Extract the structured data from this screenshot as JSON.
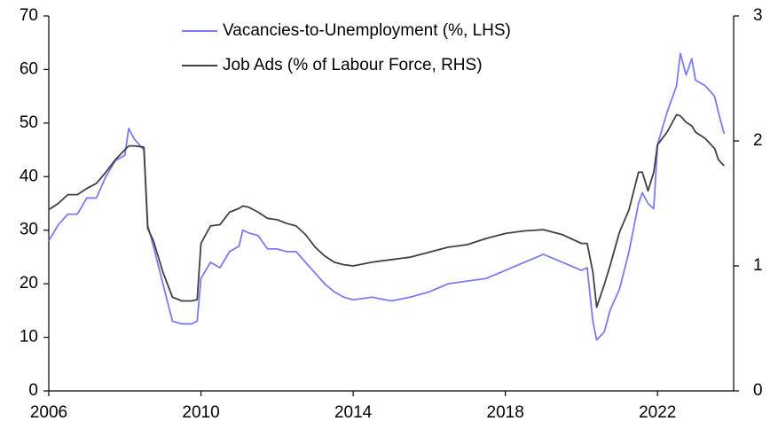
{
  "chart_data": {
    "type": "line",
    "x": [
      2006,
      2006.25,
      2006.5,
      2006.75,
      2007,
      2007.25,
      2007.5,
      2007.75,
      2008,
      2008.1,
      2008.25,
      2008.5,
      2008.6,
      2008.75,
      2009,
      2009.25,
      2009.5,
      2009.75,
      2009.9,
      2010,
      2010.25,
      2010.5,
      2010.75,
      2011,
      2011.1,
      2011.25,
      2011.5,
      2011.75,
      2012,
      2012.25,
      2012.5,
      2012.75,
      2013,
      2013.25,
      2013.5,
      2013.75,
      2014,
      2014.5,
      2015,
      2015.5,
      2016,
      2016.5,
      2017,
      2017.5,
      2018,
      2018.5,
      2019,
      2019.5,
      2020,
      2020.15,
      2020.3,
      2020.4,
      2020.6,
      2020.75,
      2021,
      2021.25,
      2021.5,
      2021.6,
      2021.75,
      2021.9,
      2022,
      2022.25,
      2022.5,
      2022.6,
      2022.75,
      2022.9,
      2023,
      2023.25,
      2023.5,
      2023.6,
      2023.75
    ],
    "series": [
      {
        "name": "Vacancies-to-Unemployment (%, LHS)",
        "color": "#7b7bef",
        "values": [
          28,
          31,
          33,
          33,
          36,
          36,
          40,
          43,
          44,
          49,
          47,
          45,
          31,
          27,
          20,
          13,
          12.5,
          12.5,
          13,
          21,
          24,
          23,
          26,
          27,
          30,
          29.5,
          29,
          26.5,
          26.5,
          26,
          26,
          24,
          22,
          20,
          18.5,
          17.5,
          17,
          17.5,
          16.8,
          17.5,
          18.5,
          20,
          20.5,
          21,
          22.5,
          24,
          25.5,
          24,
          22.5,
          23,
          13,
          9.5,
          11,
          15,
          19,
          26,
          35,
          37,
          35,
          34,
          46,
          52,
          57,
          63,
          59,
          62,
          58,
          57,
          55,
          52,
          48
        ]
      },
      {
        "name": "Job Ads (% of Labour Force, RHS)",
        "color": "#404040",
        "axis": "y2",
        "values": [
          1.45,
          1.5,
          1.57,
          1.57,
          1.62,
          1.66,
          1.75,
          1.85,
          1.93,
          1.96,
          1.96,
          1.95,
          1.3,
          1.2,
          0.95,
          0.75,
          0.72,
          0.72,
          0.73,
          1.18,
          1.32,
          1.33,
          1.43,
          1.46,
          1.48,
          1.47,
          1.43,
          1.38,
          1.37,
          1.34,
          1.32,
          1.25,
          1.15,
          1.08,
          1.03,
          1.01,
          1.0,
          1.03,
          1.05,
          1.07,
          1.11,
          1.15,
          1.17,
          1.22,
          1.26,
          1.28,
          1.29,
          1.25,
          1.18,
          1.18,
          0.95,
          0.67,
          0.85,
          1.0,
          1.27,
          1.45,
          1.75,
          1.75,
          1.6,
          1.75,
          1.97,
          2.07,
          2.21,
          2.2,
          2.15,
          2.12,
          2.07,
          2.02,
          1.94,
          1.85,
          1.8
        ]
      }
    ],
    "xlim": [
      2006,
      2024
    ],
    "xticks": [
      2006,
      2010,
      2014,
      2018,
      2022
    ],
    "ylim": [
      0,
      70
    ],
    "yticks": [
      0,
      10,
      20,
      30,
      40,
      50,
      60,
      70
    ],
    "y2lim": [
      0,
      3
    ],
    "y2ticks": [
      0,
      1,
      2,
      3
    ],
    "grid": false,
    "legend": "top"
  }
}
